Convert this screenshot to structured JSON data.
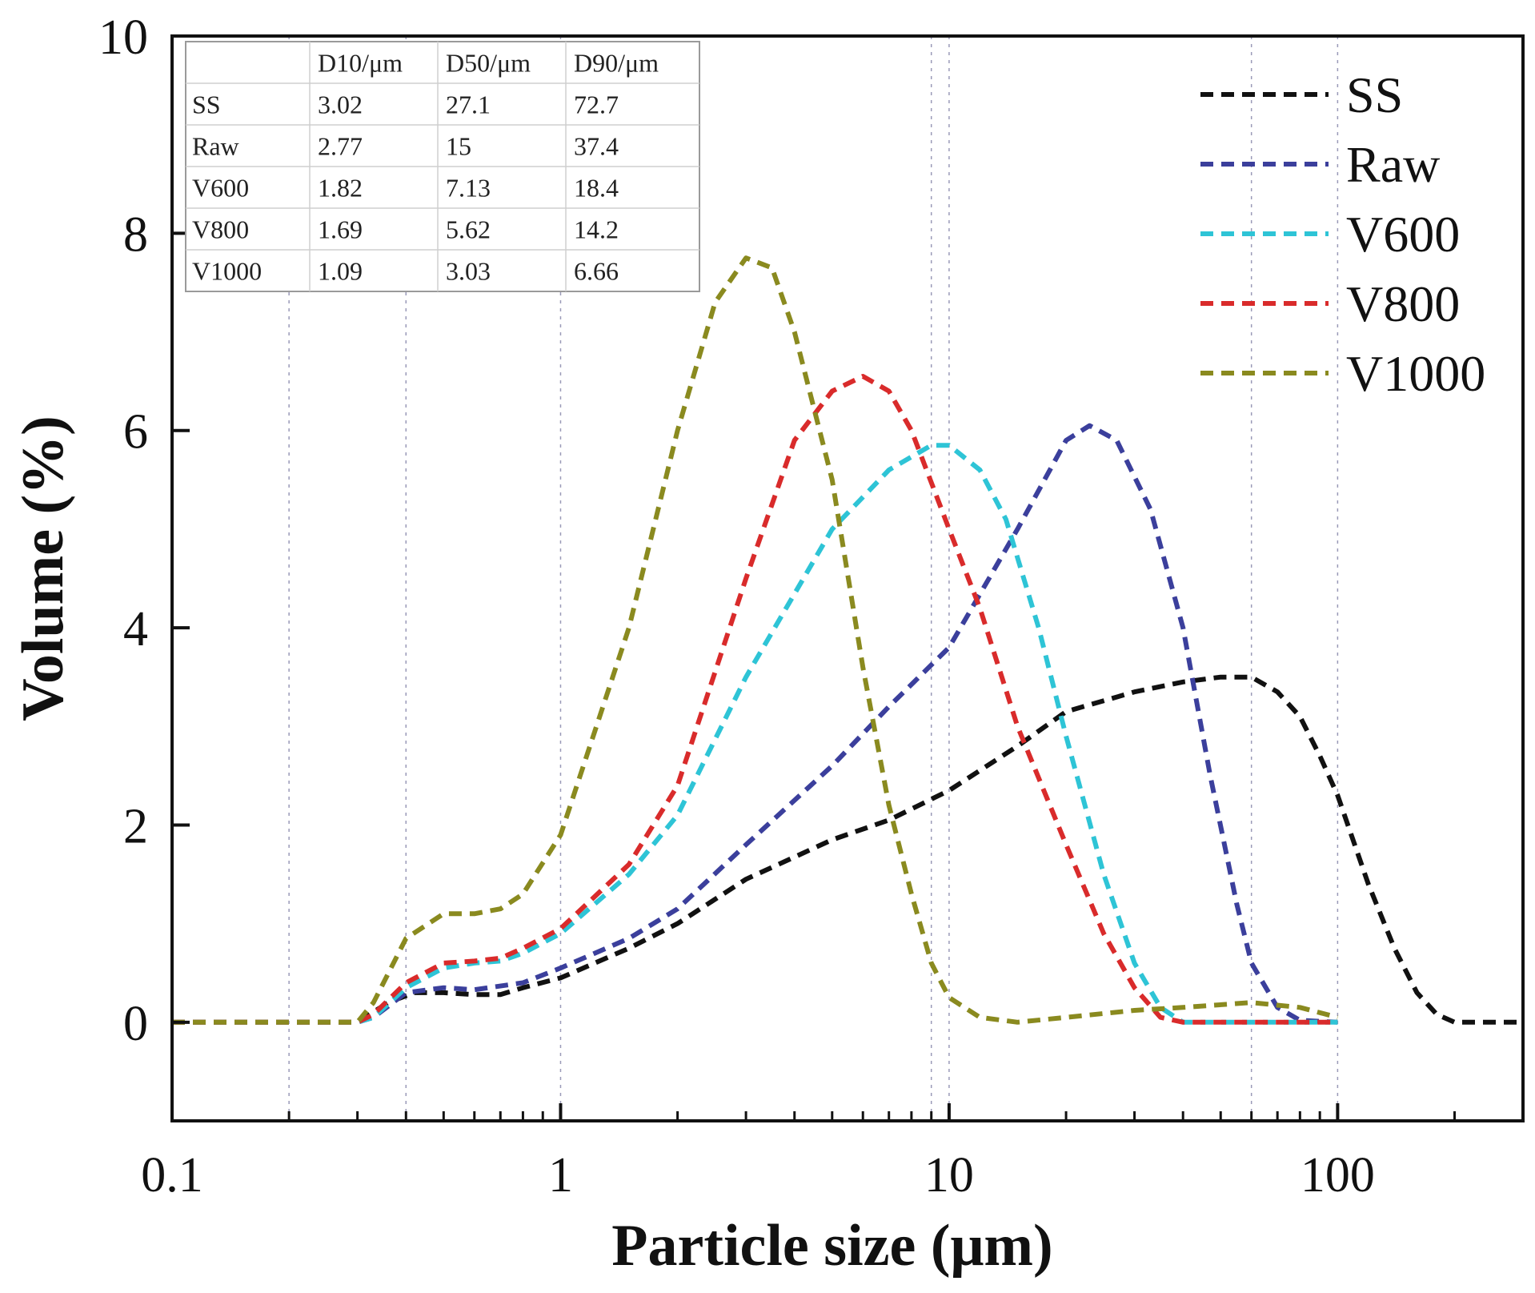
{
  "chart_data": {
    "type": "line",
    "title": "",
    "xlabel": "Particle size (μm)",
    "ylabel": "Volume (%)",
    "xscale": "log",
    "xlim": [
      0.1,
      300
    ],
    "ylim": [
      -1,
      10
    ],
    "x_ticks": [
      {
        "value": 0.1,
        "label": "0.1"
      },
      {
        "value": 1,
        "label": "1"
      },
      {
        "value": 10,
        "label": "10"
      },
      {
        "value": 100,
        "label": "100"
      }
    ],
    "y_ticks": [
      {
        "value": 0,
        "label": "0"
      },
      {
        "value": 2,
        "label": "2"
      },
      {
        "value": 4,
        "label": "4"
      },
      {
        "value": 6,
        "label": "6"
      },
      {
        "value": 8,
        "label": "8"
      },
      {
        "value": 10,
        "label": "10"
      }
    ],
    "gridlines_x": [
      0.2,
      0.4,
      1,
      9,
      10,
      60,
      100
    ],
    "legend_position": "top-right",
    "series": [
      {
        "name": "SS",
        "color": "#111111",
        "points": [
          [
            0.1,
            0
          ],
          [
            0.3,
            0
          ],
          [
            0.36,
            0.2
          ],
          [
            0.42,
            0.3
          ],
          [
            0.5,
            0.3
          ],
          [
            0.6,
            0.28
          ],
          [
            0.7,
            0.28
          ],
          [
            0.8,
            0.35
          ],
          [
            1,
            0.45
          ],
          [
            1.5,
            0.75
          ],
          [
            2,
            1.0
          ],
          [
            3,
            1.45
          ],
          [
            5,
            1.85
          ],
          [
            7,
            2.05
          ],
          [
            10,
            2.35
          ],
          [
            15,
            2.8
          ],
          [
            20,
            3.15
          ],
          [
            30,
            3.35
          ],
          [
            40,
            3.45
          ],
          [
            50,
            3.5
          ],
          [
            60,
            3.5
          ],
          [
            70,
            3.35
          ],
          [
            80,
            3.1
          ],
          [
            90,
            2.7
          ],
          [
            100,
            2.3
          ],
          [
            120,
            1.4
          ],
          [
            140,
            0.75
          ],
          [
            160,
            0.3
          ],
          [
            180,
            0.08
          ],
          [
            200,
            0
          ],
          [
            300,
            0
          ]
        ]
      },
      {
        "name": "Raw",
        "color": "#3b3f9c",
        "points": [
          [
            0.1,
            0
          ],
          [
            0.3,
            0
          ],
          [
            0.33,
            0.05
          ],
          [
            0.4,
            0.3
          ],
          [
            0.5,
            0.35
          ],
          [
            0.6,
            0.33
          ],
          [
            0.8,
            0.4
          ],
          [
            1,
            0.55
          ],
          [
            1.5,
            0.85
          ],
          [
            2,
            1.15
          ],
          [
            3,
            1.8
          ],
          [
            5,
            2.6
          ],
          [
            7,
            3.2
          ],
          [
            10,
            3.8
          ],
          [
            15,
            5.0
          ],
          [
            20,
            5.9
          ],
          [
            23,
            6.05
          ],
          [
            27,
            5.9
          ],
          [
            33,
            5.2
          ],
          [
            40,
            4.0
          ],
          [
            47,
            2.5
          ],
          [
            55,
            1.2
          ],
          [
            60,
            0.6
          ],
          [
            70,
            0.15
          ],
          [
            80,
            0.02
          ],
          [
            100,
            0
          ]
        ]
      },
      {
        "name": "V600",
        "color": "#2ec4d6",
        "points": [
          [
            0.1,
            0
          ],
          [
            0.3,
            0
          ],
          [
            0.33,
            0.05
          ],
          [
            0.4,
            0.35
          ],
          [
            0.5,
            0.55
          ],
          [
            0.6,
            0.6
          ],
          [
            0.7,
            0.62
          ],
          [
            0.8,
            0.7
          ],
          [
            1,
            0.9
          ],
          [
            1.5,
            1.5
          ],
          [
            2,
            2.1
          ],
          [
            3,
            3.5
          ],
          [
            5,
            5.0
          ],
          [
            7,
            5.6
          ],
          [
            9,
            5.85
          ],
          [
            10,
            5.85
          ],
          [
            12,
            5.6
          ],
          [
            14,
            5.1
          ],
          [
            17,
            4.0
          ],
          [
            20,
            2.9
          ],
          [
            25,
            1.5
          ],
          [
            30,
            0.6
          ],
          [
            35,
            0.15
          ],
          [
            40,
            0
          ],
          [
            100,
            0
          ]
        ]
      },
      {
        "name": "V800",
        "color": "#d92b2b",
        "points": [
          [
            0.1,
            0
          ],
          [
            0.3,
            0
          ],
          [
            0.33,
            0.08
          ],
          [
            0.4,
            0.4
          ],
          [
            0.5,
            0.6
          ],
          [
            0.6,
            0.62
          ],
          [
            0.7,
            0.65
          ],
          [
            0.8,
            0.75
          ],
          [
            1,
            0.95
          ],
          [
            1.5,
            1.6
          ],
          [
            2,
            2.4
          ],
          [
            3,
            4.5
          ],
          [
            4,
            5.9
          ],
          [
            5,
            6.4
          ],
          [
            6,
            6.55
          ],
          [
            7,
            6.4
          ],
          [
            8,
            6.0
          ],
          [
            10,
            5.0
          ],
          [
            12,
            4.2
          ],
          [
            15,
            3.0
          ],
          [
            20,
            1.8
          ],
          [
            25,
            0.9
          ],
          [
            30,
            0.35
          ],
          [
            35,
            0.05
          ],
          [
            40,
            0
          ],
          [
            100,
            0
          ]
        ]
      },
      {
        "name": "V1000",
        "color": "#8a8a1f",
        "points": [
          [
            0.1,
            0
          ],
          [
            0.3,
            0
          ],
          [
            0.33,
            0.2
          ],
          [
            0.4,
            0.85
          ],
          [
            0.5,
            1.1
          ],
          [
            0.6,
            1.1
          ],
          [
            0.7,
            1.15
          ],
          [
            0.8,
            1.3
          ],
          [
            1,
            1.9
          ],
          [
            1.5,
            4.0
          ],
          [
            2,
            6.0
          ],
          [
            2.5,
            7.3
          ],
          [
            3,
            7.75
          ],
          [
            3.5,
            7.65
          ],
          [
            4,
            7.0
          ],
          [
            5,
            5.5
          ],
          [
            6,
            3.6
          ],
          [
            7,
            2.2
          ],
          [
            8,
            1.3
          ],
          [
            9,
            0.6
          ],
          [
            10,
            0.25
          ],
          [
            12,
            0.05
          ],
          [
            15,
            0
          ],
          [
            20,
            0.05
          ],
          [
            30,
            0.12
          ],
          [
            40,
            0.15
          ],
          [
            60,
            0.2
          ],
          [
            80,
            0.15
          ],
          [
            100,
            0.05
          ]
        ]
      }
    ],
    "table": {
      "headers": [
        "",
        "D10/μm",
        "D50/μm",
        "D90/μm"
      ],
      "rows": [
        [
          "SS",
          "3.02",
          "27.1",
          "72.7"
        ],
        [
          "Raw",
          "2.77",
          "15",
          "37.4"
        ],
        [
          "V600",
          "1.82",
          "7.13",
          "18.4"
        ],
        [
          "V800",
          "1.69",
          "5.62",
          "14.2"
        ],
        [
          "V1000",
          "1.09",
          "3.03",
          "6.66"
        ]
      ],
      "highlight_column": 2,
      "highlight_color": "#e02020"
    }
  }
}
